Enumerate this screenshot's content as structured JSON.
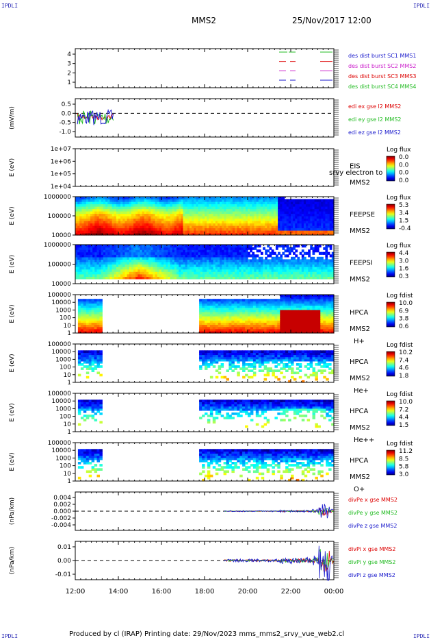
{
  "corners": {
    "tl": "IPDLI",
    "tr": "IPDLI",
    "bl": "IPDLI",
    "br": "IPDLI"
  },
  "header": {
    "spacecraft": "MMS2",
    "datetime": "25/Nov/2017 12:00"
  },
  "footer": {
    "text": "Produced by cl (IRAP)   Printing date: 29/Nov/2023   mms_mms2_srvy_vue_web2.cl"
  },
  "colors": {
    "red": "#dd0000",
    "green": "#22bb22",
    "blue": "#1a1acc",
    "magenta": "#cc22cc"
  },
  "chart_data": [
    {
      "type": "line",
      "panel": "coverage",
      "yticks": [
        "4",
        "3",
        "2",
        "1"
      ],
      "legend": [
        {
          "text": "des dist burst SC1 MMS1",
          "color": "#1a1acc"
        },
        {
          "text": "des dist burst SC2 MMS2",
          "color": "#cc22cc"
        },
        {
          "text": "des dist burst SC3 MMS3",
          "color": "#dd0000"
        },
        {
          "text": "des dist burst SC4 MMS4",
          "color": "#22bb22"
        }
      ]
    },
    {
      "type": "line",
      "panel": "edi-e",
      "ylabel": "(mV/m)",
      "yticks": [
        "0.5",
        "0.0",
        "-0.5",
        "-1.0"
      ],
      "ylim": [
        -1.3,
        0.8
      ],
      "legend": [
        {
          "text": "edi ex gse l2 MMS2",
          "color": "#dd0000"
        },
        {
          "text": "edi ey gse l2 MMS2",
          "color": "#22bb22"
        },
        {
          "text": "edi ez gse l2 MMS2",
          "color": "#1a1acc"
        }
      ]
    },
    {
      "type": "heatmap",
      "panel": "eis",
      "ylabel": "E (eV)",
      "yticks": [
        "1e+07",
        "1e+06",
        "1e+05",
        "1e+04"
      ],
      "label": [
        "EIS",
        "MMS2"
      ],
      "overlay": "srvy electron to",
      "cbar_title": "Log flux",
      "cbar_ticks": [
        "0.0",
        "0.0",
        "0.0",
        "0.0"
      ]
    },
    {
      "type": "heatmap",
      "panel": "feeps-e",
      "ylabel": "E (eV)",
      "yticks": [
        "1000000",
        "100000",
        "10000"
      ],
      "label": [
        "FEEPSE",
        "MMS2"
      ],
      "cbar_title": "Log flux",
      "cbar_ticks": [
        "5.3",
        "3.4",
        "1.5",
        "-0.4"
      ]
    },
    {
      "type": "heatmap",
      "panel": "feeps-i",
      "ylabel": "E (eV)",
      "yticks": [
        "1000000",
        "100000",
        "10000"
      ],
      "label": [
        "FEEPSI",
        "MMS2"
      ],
      "cbar_title": "Log flux",
      "cbar_ticks": [
        "4.4",
        "3.0",
        "1.6",
        "0.3"
      ]
    },
    {
      "type": "heatmap",
      "panel": "hpca-h",
      "ylabel": "E (eV)",
      "yticks": [
        "100000",
        "10000",
        "1000",
        "100",
        "10",
        "1"
      ],
      "label": [
        "HPCA",
        "MMS2",
        "H+"
      ],
      "cbar_title": "Log fdist",
      "cbar_ticks": [
        "10.0",
        "6.9",
        "3.8",
        "0.6"
      ]
    },
    {
      "type": "heatmap",
      "panel": "hpca-he",
      "ylabel": "E (eV)",
      "yticks": [
        "100000",
        "10000",
        "1000",
        "100",
        "10",
        "1"
      ],
      "label": [
        "HPCA",
        "MMS2",
        "He+"
      ],
      "cbar_title": "Log fdist",
      "cbar_ticks": [
        "10.2",
        "7.4",
        "4.6",
        "1.8"
      ]
    },
    {
      "type": "heatmap",
      "panel": "hpca-hepp",
      "ylabel": "E (eV)",
      "yticks": [
        "100000",
        "10000",
        "1000",
        "100",
        "10",
        "1"
      ],
      "label": [
        "HPCA",
        "MMS2",
        "He++"
      ],
      "cbar_title": "Log fdist",
      "cbar_ticks": [
        "10.0",
        "7.2",
        "4.4",
        "1.5"
      ]
    },
    {
      "type": "heatmap",
      "panel": "hpca-o",
      "ylabel": "E (eV)",
      "yticks": [
        "100000",
        "10000",
        "1000",
        "100",
        "10",
        "1"
      ],
      "label": [
        "HPCA",
        "MMS2",
        "O+"
      ],
      "cbar_title": "Log fdist",
      "cbar_ticks": [
        "11.2",
        "8.5",
        "5.8",
        "3.0"
      ]
    },
    {
      "type": "line",
      "panel": "divpe",
      "ylabel": "(nPa/km)",
      "yticks": [
        "0.004",
        "0.002",
        "0.000",
        "-0.002",
        "-0.004"
      ],
      "ylim": [
        -0.005,
        0.005
      ],
      "legend": [
        {
          "text": "divPe x gse MMS2",
          "color": "#dd0000"
        },
        {
          "text": "divPe y gse MMS2",
          "color": "#22bb22"
        },
        {
          "text": "divPe z gse MMS2",
          "color": "#1a1acc"
        }
      ]
    },
    {
      "type": "line",
      "panel": "divpi",
      "ylabel": "(nPa/km)",
      "yticks": [
        "0.01",
        "0.00",
        "-0.01"
      ],
      "ylim": [
        -0.016,
        0.016
      ],
      "legend": [
        {
          "text": "divPi x gse MMS2",
          "color": "#dd0000"
        },
        {
          "text": "divPi y gse MMS2",
          "color": "#22bb22"
        },
        {
          "text": "divPi z gse MMS2",
          "color": "#1a1acc"
        }
      ]
    }
  ],
  "xaxis": {
    "ticks": [
      "12:00",
      "14:00",
      "16:00",
      "18:00",
      "20:00",
      "22:00",
      "00:00"
    ]
  }
}
